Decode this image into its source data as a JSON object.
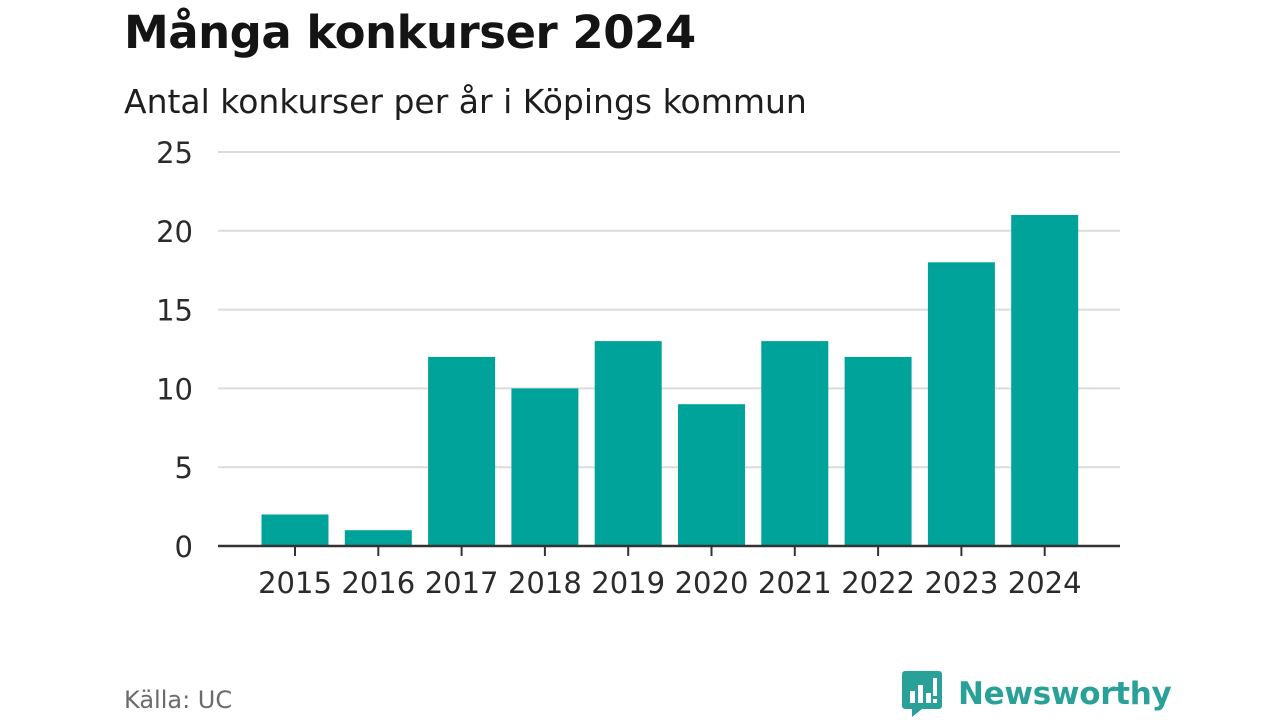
{
  "chart_data": {
    "type": "bar",
    "title": "Många konkurser 2024",
    "subtitle": "Antal konkurser per år i Köpings kommun",
    "categories": [
      "2015",
      "2016",
      "2017",
      "2018",
      "2019",
      "2020",
      "2021",
      "2022",
      "2023",
      "2024"
    ],
    "values": [
      2,
      1,
      12,
      10,
      13,
      9,
      13,
      12,
      18,
      21
    ],
    "ylim": [
      0,
      25
    ],
    "yticks": [
      "0",
      "5",
      "10",
      "15",
      "20",
      "25"
    ],
    "grid": true,
    "bar_color": "#00a39a",
    "grid_color": "#dcdcdc",
    "axis_color": "#333333"
  },
  "source": "Källa: UC",
  "brand": {
    "name": "Newsworthy",
    "icon": "newsworthy-logo-icon",
    "color": "#2aa198"
  }
}
